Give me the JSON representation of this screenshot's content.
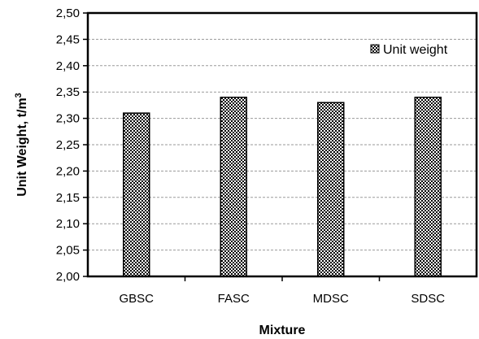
{
  "chart_data": {
    "type": "bar",
    "title": "",
    "xlabel": "Mixture",
    "ylabel": "Unit Weight, t/m",
    "ylabel_superscript": "3",
    "categories": [
      "GBSC",
      "FASC",
      "MDSC",
      "SDSC"
    ],
    "series": [
      {
        "name": "Unit weight",
        "values": [
          2.31,
          2.34,
          2.33,
          2.34
        ]
      }
    ],
    "ylim": [
      2.0,
      2.5
    ],
    "yticks": [
      2.0,
      2.05,
      2.1,
      2.15,
      2.2,
      2.25,
      2.3,
      2.35,
      2.4,
      2.45,
      2.5
    ],
    "ytick_labels": [
      "2,00",
      "2,05",
      "2,10",
      "2,15",
      "2,20",
      "2,25",
      "2,30",
      "2,35",
      "2,40",
      "2,45",
      "2,50"
    ],
    "grid": true,
    "legend_position": "top-right",
    "bar_pattern": "checkered"
  }
}
